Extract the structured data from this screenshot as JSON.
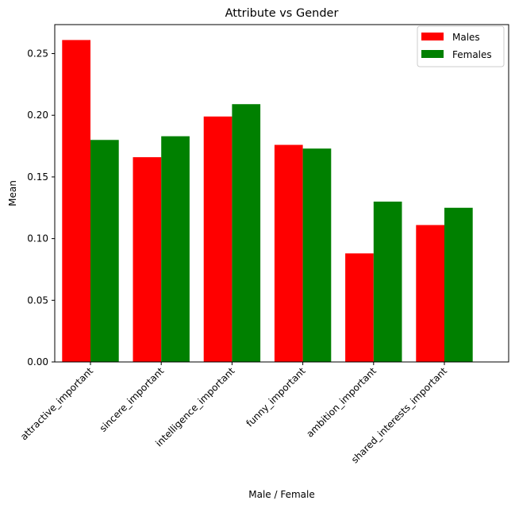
{
  "chart_data": {
    "type": "bar",
    "title": "Attribute vs Gender",
    "xlabel": "Male / Female",
    "ylabel": "Mean",
    "categories": [
      "attractive_important",
      "sincere_important",
      "intelligence_important",
      "funny_important",
      "ambition_important",
      "shared_interests_important"
    ],
    "series": [
      {
        "name": "Males",
        "color": "#ff0000",
        "values": [
          0.261,
          0.166,
          0.199,
          0.176,
          0.088,
          0.111
        ]
      },
      {
        "name": "Females",
        "color": "#008000",
        "values": [
          0.18,
          0.183,
          0.209,
          0.173,
          0.13,
          0.125
        ]
      }
    ],
    "ylim": [
      0,
      0.2735
    ],
    "yticks": [
      "0.00",
      "0.05",
      "0.10",
      "0.15",
      "0.20",
      "0.25"
    ],
    "grid": false,
    "legend_position": "top-right"
  }
}
